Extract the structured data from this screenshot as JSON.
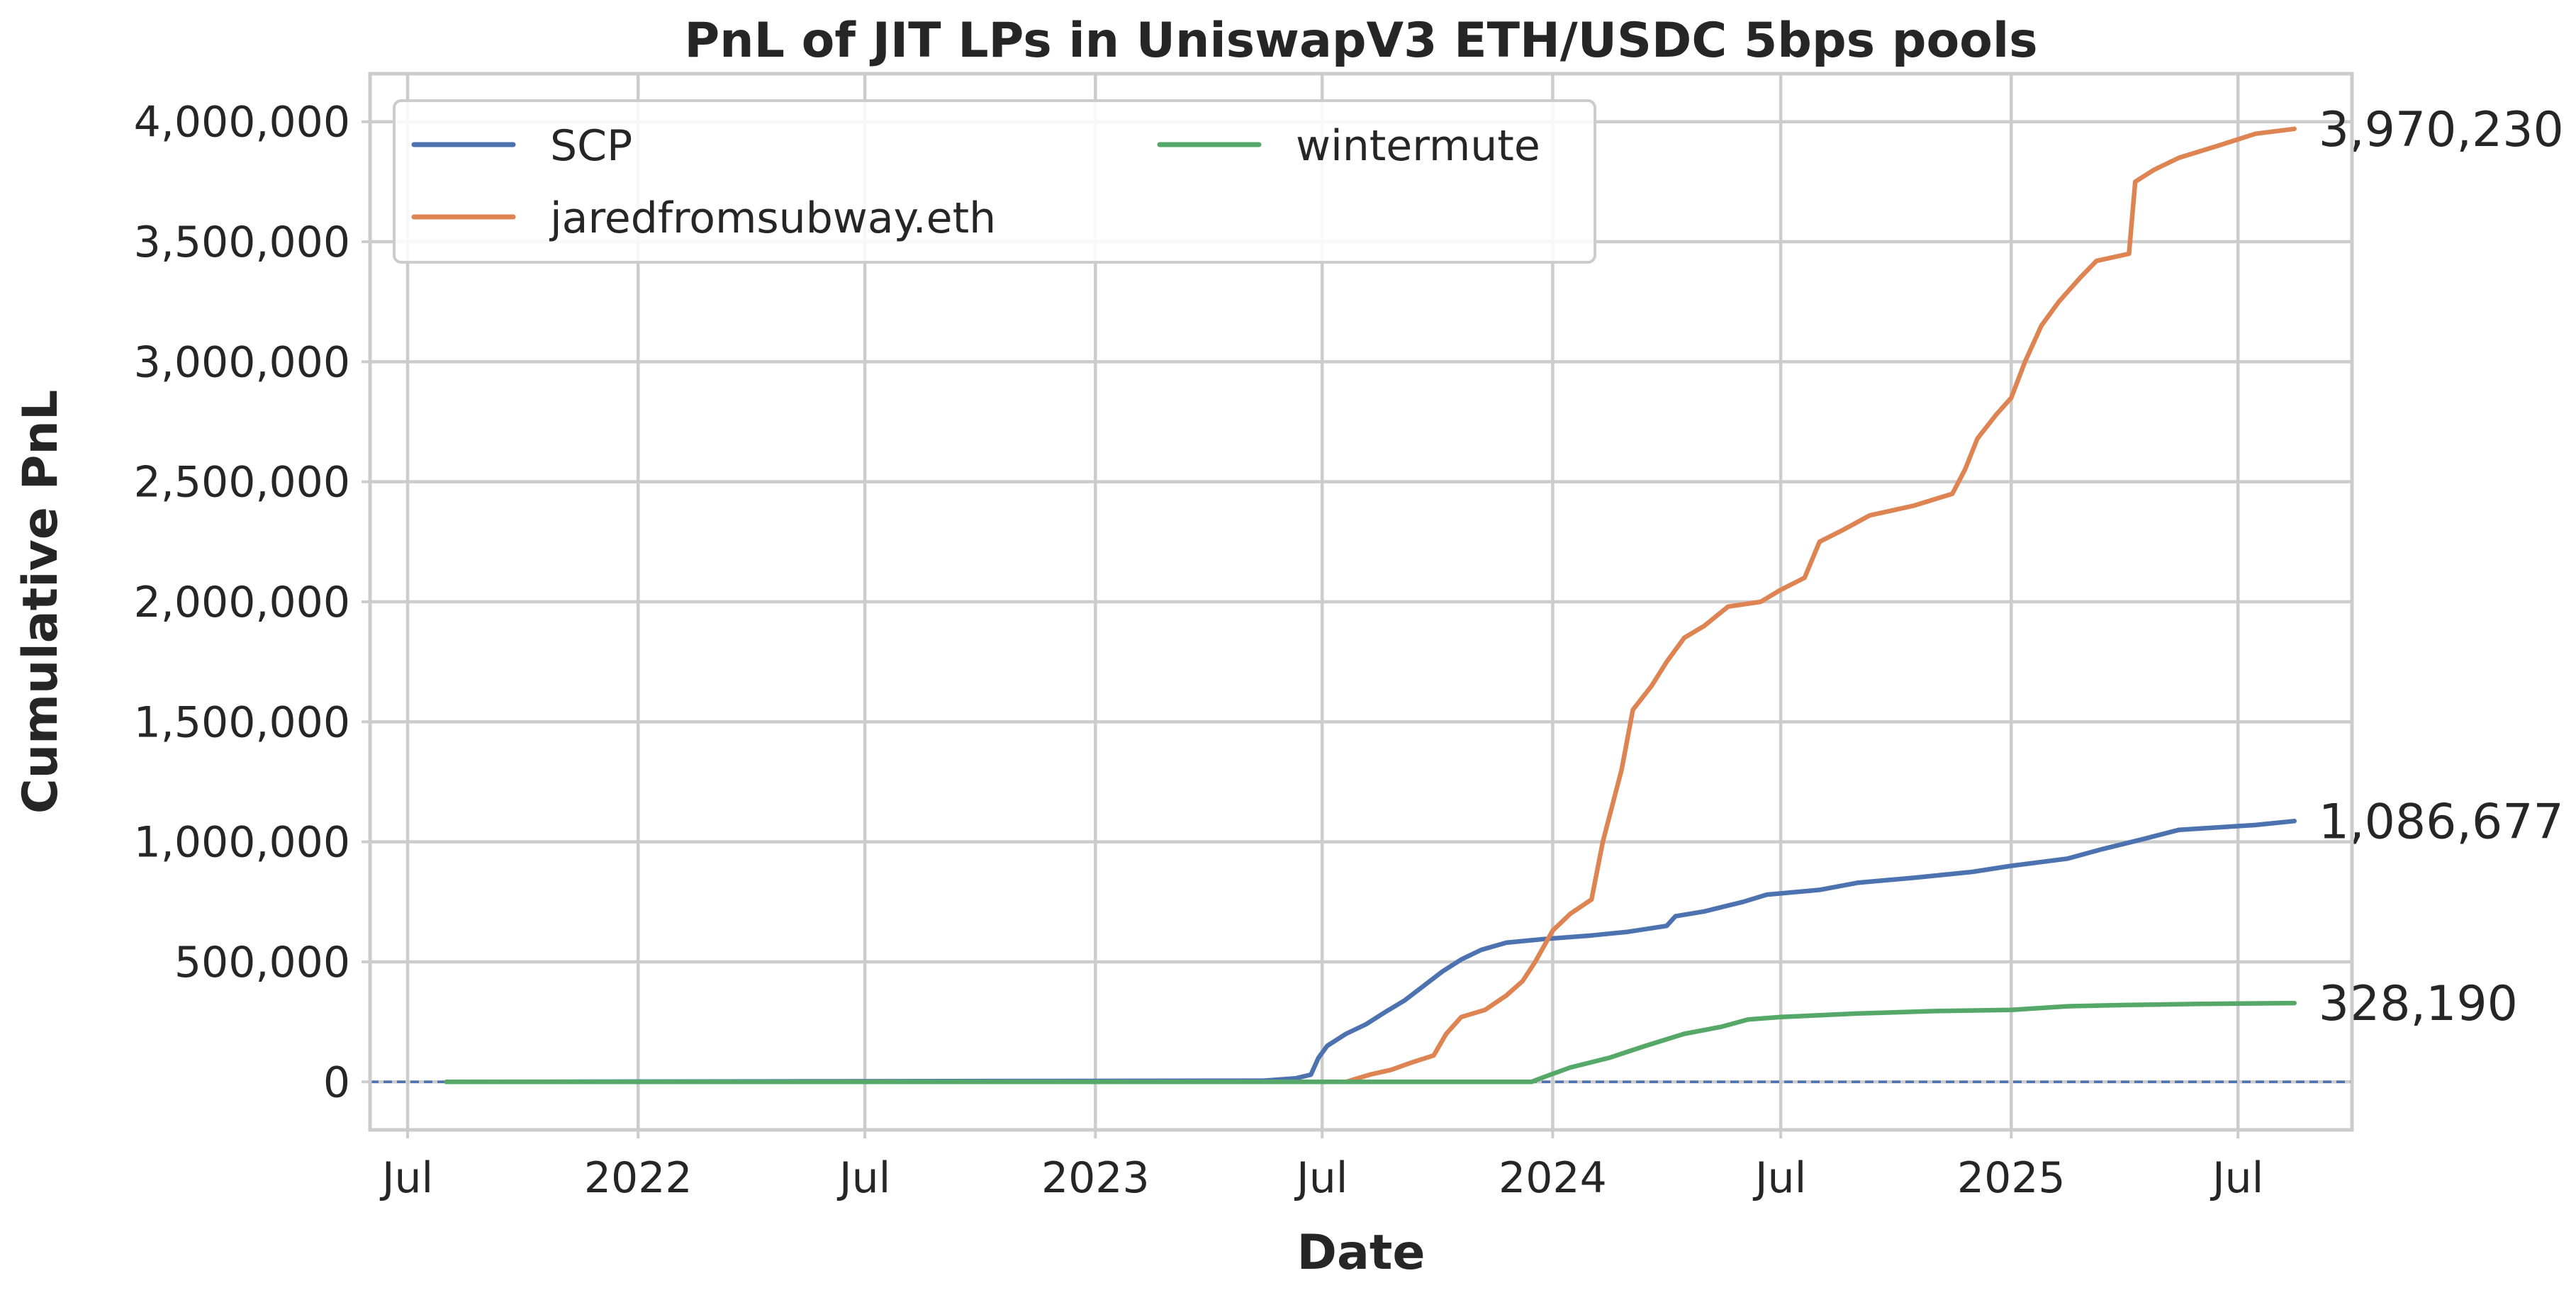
{
  "chart_data": {
    "type": "line",
    "title": "PnL of JIT LPs in UniswapV3 ETH/USDC 5bps pools",
    "xlabel": "Date",
    "ylabel": "Cumulative PnL",
    "x_range": [
      "2021-06-01",
      "2025-09-30"
    ],
    "ylim": [
      -200000,
      4200000
    ],
    "grid": true,
    "legend_placement": "upper-left",
    "legend_columns": 2,
    "x_ticks": [
      {
        "date": "2021-07-01",
        "label": "Jul"
      },
      {
        "date": "2022-01-01",
        "label": "2022"
      },
      {
        "date": "2022-07-01",
        "label": "Jul"
      },
      {
        "date": "2023-01-01",
        "label": "2023"
      },
      {
        "date": "2023-07-01",
        "label": "Jul"
      },
      {
        "date": "2024-01-01",
        "label": "2024"
      },
      {
        "date": "2024-07-01",
        "label": "Jul"
      },
      {
        "date": "2025-01-01",
        "label": "2025"
      },
      {
        "date": "2025-07-01",
        "label": "Jul"
      }
    ],
    "y_ticks": [
      {
        "value": 0,
        "label": "0"
      },
      {
        "value": 500000,
        "label": "500,000"
      },
      {
        "value": 1000000,
        "label": "1,000,000"
      },
      {
        "value": 1500000,
        "label": "1,500,000"
      },
      {
        "value": 2000000,
        "label": "2,000,000"
      },
      {
        "value": 2500000,
        "label": "2,500,000"
      },
      {
        "value": 3000000,
        "label": "3,000,000"
      },
      {
        "value": 3500000,
        "label": "3,500,000"
      },
      {
        "value": 4000000,
        "label": "4,000,000"
      }
    ],
    "reference_line": {
      "y": 0,
      "style": "dashed",
      "color": "#4c72b0"
    },
    "series": [
      {
        "name": "SCP",
        "color": "#4c72b0",
        "end_label": "1,086,677",
        "points": [
          [
            "2021-08-01",
            0
          ],
          [
            "2023-05-15",
            5000
          ],
          [
            "2023-06-10",
            15000
          ],
          [
            "2023-06-22",
            30000
          ],
          [
            "2023-06-28",
            100000
          ],
          [
            "2023-07-05",
            150000
          ],
          [
            "2023-07-20",
            200000
          ],
          [
            "2023-08-05",
            240000
          ],
          [
            "2023-08-20",
            290000
          ],
          [
            "2023-09-05",
            340000
          ],
          [
            "2023-09-20",
            400000
          ],
          [
            "2023-10-05",
            460000
          ],
          [
            "2023-10-20",
            510000
          ],
          [
            "2023-11-05",
            550000
          ],
          [
            "2023-11-25",
            580000
          ],
          [
            "2023-12-25",
            595000
          ],
          [
            "2024-02-01",
            610000
          ],
          [
            "2024-03-01",
            625000
          ],
          [
            "2024-04-01",
            650000
          ],
          [
            "2024-04-08",
            690000
          ],
          [
            "2024-05-01",
            710000
          ],
          [
            "2024-06-01",
            750000
          ],
          [
            "2024-06-20",
            780000
          ],
          [
            "2024-08-01",
            800000
          ],
          [
            "2024-09-01",
            830000
          ],
          [
            "2024-10-15",
            850000
          ],
          [
            "2024-12-01",
            875000
          ],
          [
            "2025-01-01",
            900000
          ],
          [
            "2025-02-15",
            930000
          ],
          [
            "2025-03-15",
            970000
          ],
          [
            "2025-04-15",
            1010000
          ],
          [
            "2025-05-15",
            1050000
          ],
          [
            "2025-06-15",
            1060000
          ],
          [
            "2025-07-15",
            1070000
          ],
          [
            "2025-08-15",
            1086677
          ]
        ]
      },
      {
        "name": "jaredfromsubway.eth",
        "color": "#dd8452",
        "end_label": "3,970,230",
        "points": [
          [
            "2023-07-20",
            0
          ],
          [
            "2023-08-08",
            30000
          ],
          [
            "2023-08-25",
            50000
          ],
          [
            "2023-09-10",
            80000
          ],
          [
            "2023-09-28",
            110000
          ],
          [
            "2023-10-08",
            200000
          ],
          [
            "2023-10-20",
            270000
          ],
          [
            "2023-11-08",
            300000
          ],
          [
            "2023-11-25",
            360000
          ],
          [
            "2023-12-08",
            420000
          ],
          [
            "2023-12-18",
            500000
          ],
          [
            "2024-01-01",
            630000
          ],
          [
            "2024-01-15",
            700000
          ],
          [
            "2024-02-01",
            760000
          ],
          [
            "2024-02-10",
            1000000
          ],
          [
            "2024-02-25",
            1300000
          ],
          [
            "2024-03-05",
            1550000
          ],
          [
            "2024-03-20",
            1650000
          ],
          [
            "2024-04-01",
            1750000
          ],
          [
            "2024-04-15",
            1850000
          ],
          [
            "2024-05-01",
            1900000
          ],
          [
            "2024-05-20",
            1980000
          ],
          [
            "2024-06-15",
            2000000
          ],
          [
            "2024-07-01",
            2050000
          ],
          [
            "2024-07-20",
            2100000
          ],
          [
            "2024-08-01",
            2250000
          ],
          [
            "2024-08-20",
            2300000
          ],
          [
            "2024-09-10",
            2360000
          ],
          [
            "2024-10-15",
            2400000
          ],
          [
            "2024-11-15",
            2450000
          ],
          [
            "2024-11-25",
            2550000
          ],
          [
            "2024-12-05",
            2680000
          ],
          [
            "2024-12-20",
            2780000
          ],
          [
            "2025-01-01",
            2850000
          ],
          [
            "2025-01-12",
            3000000
          ],
          [
            "2025-01-25",
            3150000
          ],
          [
            "2025-02-08",
            3250000
          ],
          [
            "2025-02-25",
            3350000
          ],
          [
            "2025-03-10",
            3420000
          ],
          [
            "2025-04-05",
            3450000
          ],
          [
            "2025-04-10",
            3750000
          ],
          [
            "2025-04-25",
            3800000
          ],
          [
            "2025-05-15",
            3850000
          ],
          [
            "2025-06-15",
            3900000
          ],
          [
            "2025-07-15",
            3950000
          ],
          [
            "2025-08-15",
            3970230
          ]
        ]
      },
      {
        "name": "wintermute",
        "color": "#55a868",
        "end_label": "328,190",
        "points": [
          [
            "2021-08-01",
            0
          ],
          [
            "2023-12-15",
            0
          ],
          [
            "2023-12-25",
            20000
          ],
          [
            "2024-01-15",
            60000
          ],
          [
            "2024-02-15",
            100000
          ],
          [
            "2024-03-15",
            150000
          ],
          [
            "2024-04-15",
            200000
          ],
          [
            "2024-05-15",
            230000
          ],
          [
            "2024-06-05",
            260000
          ],
          [
            "2024-07-01",
            270000
          ],
          [
            "2024-09-01",
            285000
          ],
          [
            "2024-11-01",
            295000
          ],
          [
            "2025-01-01",
            300000
          ],
          [
            "2025-02-15",
            315000
          ],
          [
            "2025-04-01",
            320000
          ],
          [
            "2025-06-01",
            325000
          ],
          [
            "2025-08-15",
            328190
          ]
        ]
      }
    ]
  }
}
